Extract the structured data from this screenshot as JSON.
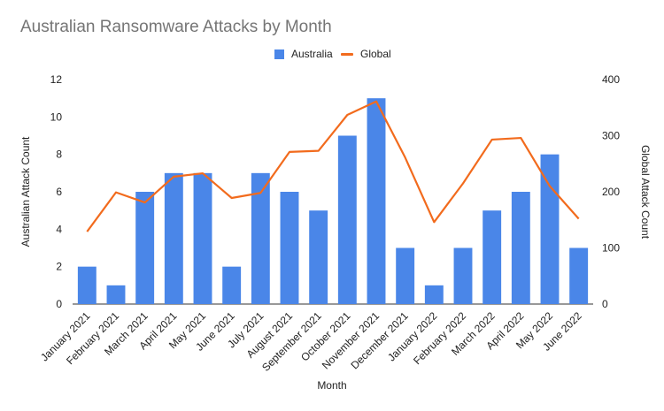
{
  "chart_data": {
    "type": "bar",
    "title": "Australian Ransomware Attacks by Month",
    "xlabel": "Month",
    "ylabel": "Australian Attack Count",
    "y2label": "Global Attack Count",
    "ylim": [
      0,
      12
    ],
    "y2lim": [
      0,
      400
    ],
    "yticks": [
      "0",
      "2",
      "4",
      "6",
      "8",
      "10",
      "12"
    ],
    "y2ticks": [
      "0",
      "100",
      "200",
      "300",
      "400"
    ],
    "grid": false,
    "legend_position": "top",
    "categories": [
      "January 2021",
      "February 2021",
      "March 2021",
      "April 2021",
      "May 2021",
      "June 2021",
      "July 2021",
      "August 2021",
      "September 2021",
      "October 2021",
      "November 2021",
      "December 2021",
      "January 2022",
      "February 2022",
      "March 2022",
      "April 2022",
      "May 2022",
      "June 2022"
    ],
    "series": [
      {
        "name": "Australia",
        "type": "bar",
        "axis": "left",
        "color": "#4a86e8",
        "values": [
          2,
          1,
          6,
          7,
          7,
          2,
          7,
          6,
          5,
          9,
          11,
          3,
          1,
          3,
          5,
          6,
          8,
          3
        ]
      },
      {
        "name": "Global",
        "type": "line",
        "axis": "right",
        "color": "#f26b1d",
        "values": [
          129,
          199,
          181,
          227,
          233,
          189,
          198,
          271,
          273,
          337,
          361,
          261,
          146,
          215,
          293,
          296,
          210,
          152
        ]
      }
    ]
  }
}
